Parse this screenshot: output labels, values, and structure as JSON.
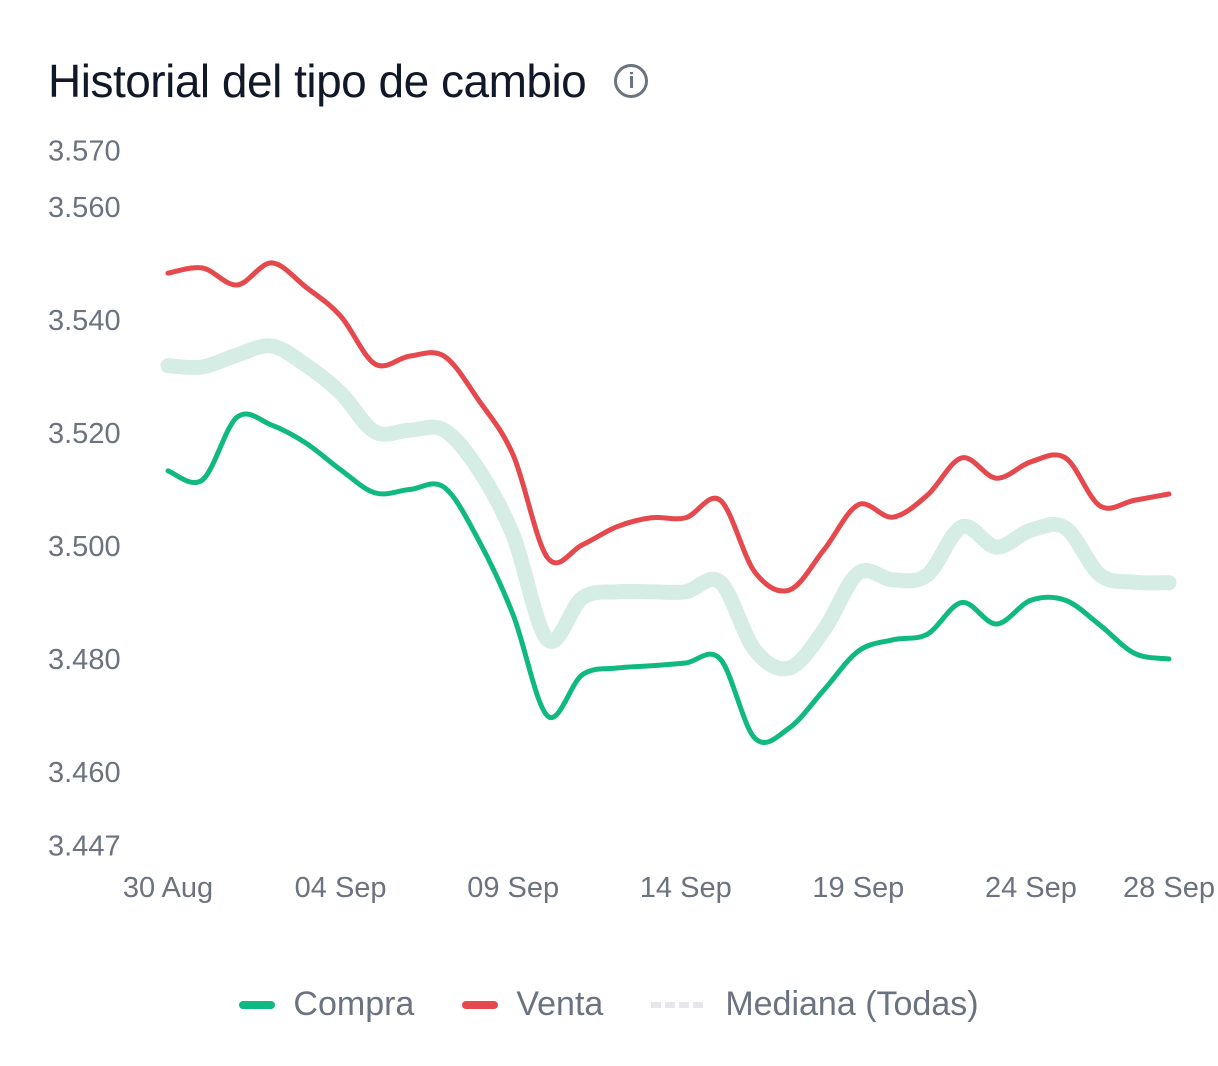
{
  "chart_data": {
    "type": "line",
    "title": "Historial del tipo de cambio",
    "info_icon": "info-circle-icon",
    "x": [
      "30 Aug",
      "31 Aug",
      "01 Sep",
      "02 Sep",
      "03 Sep",
      "04 Sep",
      "05 Sep",
      "06 Sep",
      "07 Sep",
      "08 Sep",
      "09 Sep",
      "10 Sep",
      "11 Sep",
      "12 Sep",
      "13 Sep",
      "14 Sep",
      "15 Sep",
      "16 Sep",
      "17 Sep",
      "18 Sep",
      "19 Sep",
      "20 Sep",
      "21 Sep",
      "22 Sep",
      "23 Sep",
      "24 Sep",
      "25 Sep",
      "26 Sep",
      "27 Sep",
      "28 Sep"
    ],
    "x_tick_labels": [
      "30 Aug",
      "04 Sep",
      "09 Sep",
      "14 Sep",
      "19 Sep",
      "24 Sep",
      "28 Sep"
    ],
    "y_tick_labels": [
      "3.570",
      "3.560",
      "3.540",
      "3.520",
      "3.500",
      "3.480",
      "3.460",
      "3.447"
    ],
    "ylim": [
      3.447,
      3.57
    ],
    "grid": false,
    "legend_position": "bottom",
    "series": [
      {
        "name": "Compra",
        "color": "#10b981",
        "style": "solid",
        "values": [
          3.5133,
          3.5117,
          3.5228,
          3.5214,
          3.5182,
          3.5135,
          3.5094,
          3.51,
          3.5104,
          3.501,
          3.4878,
          3.4699,
          3.4772,
          3.4784,
          3.4788,
          3.4793,
          3.48,
          3.466,
          3.4678,
          3.4745,
          3.4814,
          3.4834,
          3.4844,
          3.49,
          3.4862,
          3.4904,
          3.4904,
          3.486,
          3.481,
          3.48
        ]
      },
      {
        "name": "Venta",
        "color": "#e5484d",
        "style": "solid",
        "values": [
          3.5483,
          3.5492,
          3.5462,
          3.5501,
          3.5458,
          3.5407,
          3.5322,
          3.5336,
          3.5336,
          3.5258,
          3.5161,
          3.4979,
          3.5002,
          3.5034,
          3.505,
          3.505,
          3.5081,
          3.4954,
          3.4922,
          3.4993,
          3.5073,
          3.5051,
          3.509,
          3.5156,
          3.512,
          3.5149,
          3.5156,
          3.5071,
          3.5081,
          3.5092
        ]
      },
      {
        "name": "Mediana (Todas)",
        "color": "#d5ede5",
        "style": "dashed",
        "values": [
          3.5319,
          3.5317,
          3.5338,
          3.5354,
          3.532,
          3.5271,
          3.5202,
          3.5205,
          3.5205,
          3.5135,
          3.5019,
          3.4834,
          3.4908,
          3.4919,
          3.4919,
          3.4919,
          3.4936,
          3.4816,
          3.4784,
          3.4851,
          3.4952,
          3.494,
          3.4949,
          3.5034,
          3.4998,
          3.5028,
          3.5032,
          3.4949,
          3.4936,
          3.4935
        ]
      }
    ]
  }
}
